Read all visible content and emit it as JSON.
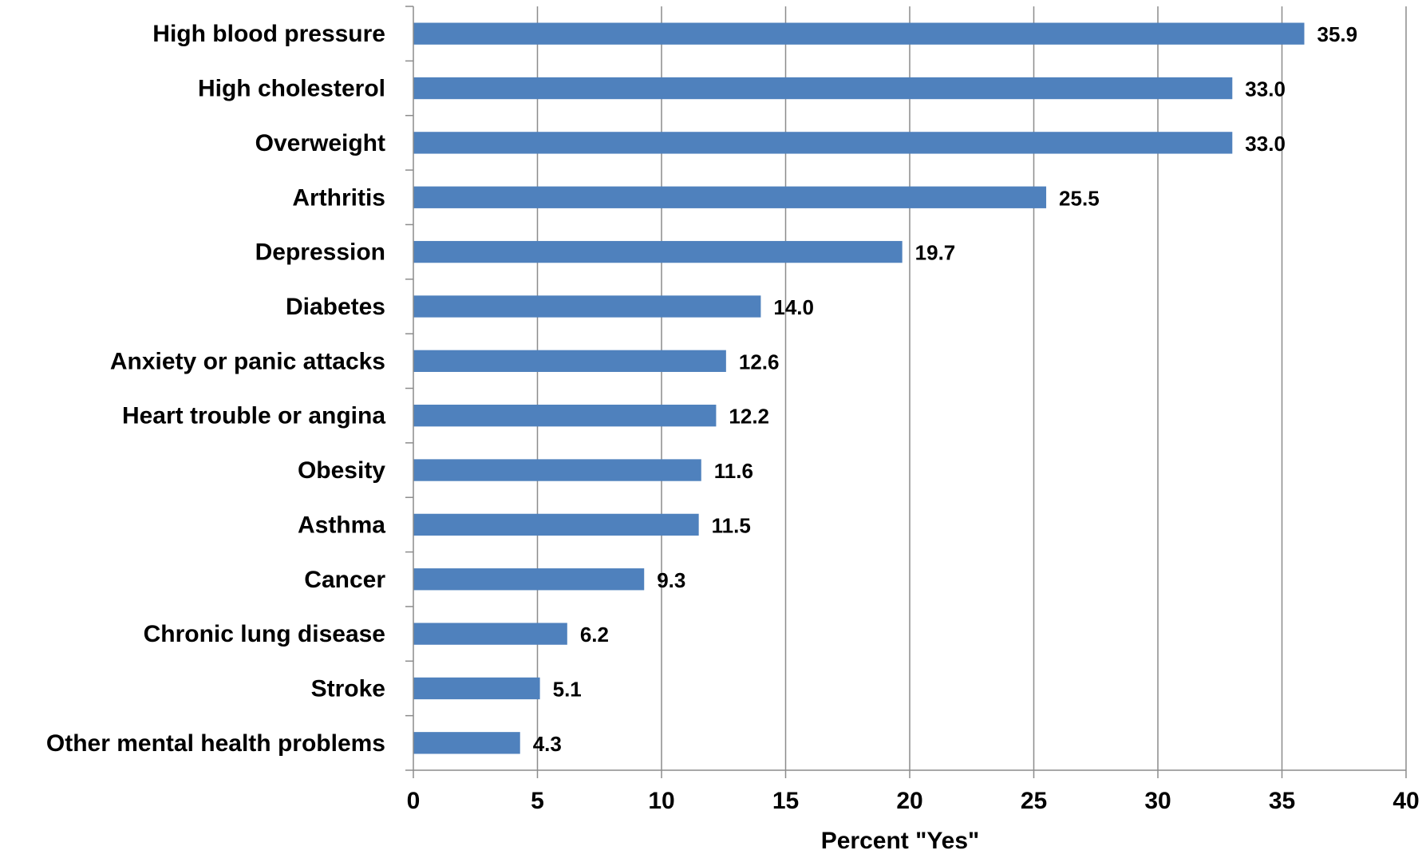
{
  "chart_data": {
    "type": "bar",
    "orientation": "horizontal",
    "categories": [
      "High blood pressure",
      "High cholesterol",
      "Overweight",
      "Arthritis",
      "Depression",
      "Diabetes",
      "Anxiety or panic attacks",
      "Heart trouble or angina",
      "Obesity",
      "Asthma",
      "Cancer",
      "Chronic lung disease",
      "Stroke",
      "Other mental health problems"
    ],
    "values": [
      35.9,
      33.0,
      33.0,
      25.5,
      19.7,
      14.0,
      12.6,
      12.2,
      11.6,
      11.5,
      9.3,
      6.2,
      5.1,
      4.3
    ],
    "value_labels": [
      "35.9",
      "33.0",
      "33.0",
      "25.5",
      "19.7",
      "14.0",
      "12.6",
      "12.2",
      "11.6",
      "11.5",
      "9.3",
      "6.2",
      "5.1",
      "4.3"
    ],
    "title": "",
    "xlabel": "Percent \"Yes\"",
    "ylabel": "",
    "xlim": [
      0,
      40
    ],
    "xticks": [
      0,
      5,
      10,
      15,
      20,
      25,
      30,
      35,
      40
    ],
    "grid": "vertical",
    "legend": "none",
    "bar_color": "#4f81bd"
  }
}
